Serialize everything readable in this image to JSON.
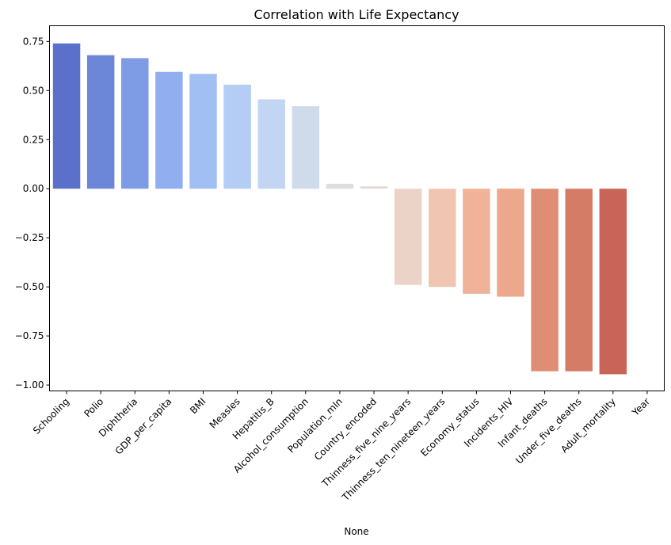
{
  "chart_data": {
    "type": "bar",
    "title": "Correlation with Life Expectancy",
    "xlabel": "None",
    "ylabel": "",
    "ylim": [
      -1.03,
      0.83
    ],
    "yticks": [
      0.75,
      0.5,
      0.25,
      0.0,
      -0.25,
      -0.5,
      -0.75,
      -1.0
    ],
    "ytick_labels": [
      "0.75",
      "0.50",
      "0.25",
      "0.00",
      "−0.25",
      "−0.50",
      "−0.75",
      "−1.00"
    ],
    "grid": false,
    "categories": [
      "Schooling",
      "Polio",
      "Diphtheria",
      "GDP_per_capita",
      "BMI",
      "Measles",
      "Hepatitis_B",
      "Alcohol_consumption",
      "Population_mln",
      "Country_encoded",
      "Thinness_five_nine_years",
      "Thinness_ten_nineteen_years",
      "Economy_status",
      "Incidents_HIV",
      "Infant_deaths",
      "Under_five_deaths",
      "Adult_mortality",
      "Year"
    ],
    "values": [
      0.74,
      0.68,
      0.665,
      0.595,
      0.585,
      0.53,
      0.455,
      0.42,
      0.025,
      0.012,
      -0.49,
      -0.5,
      -0.535,
      -0.55,
      -0.93,
      -0.93,
      -0.945,
      0.0
    ],
    "colors": [
      "#5b70cb",
      "#6c86d8",
      "#7e9be5",
      "#90aef0",
      "#a2bff4",
      "#b3cdf5",
      "#c2d5f2",
      "#cfdaea",
      "#dddddf",
      "#e0dbd9",
      "#ecd3c7",
      "#f0c5b2",
      "#f0b399",
      "#eca78c",
      "#df8e75",
      "#d57c66",
      "#c96458",
      "#c96458"
    ]
  }
}
